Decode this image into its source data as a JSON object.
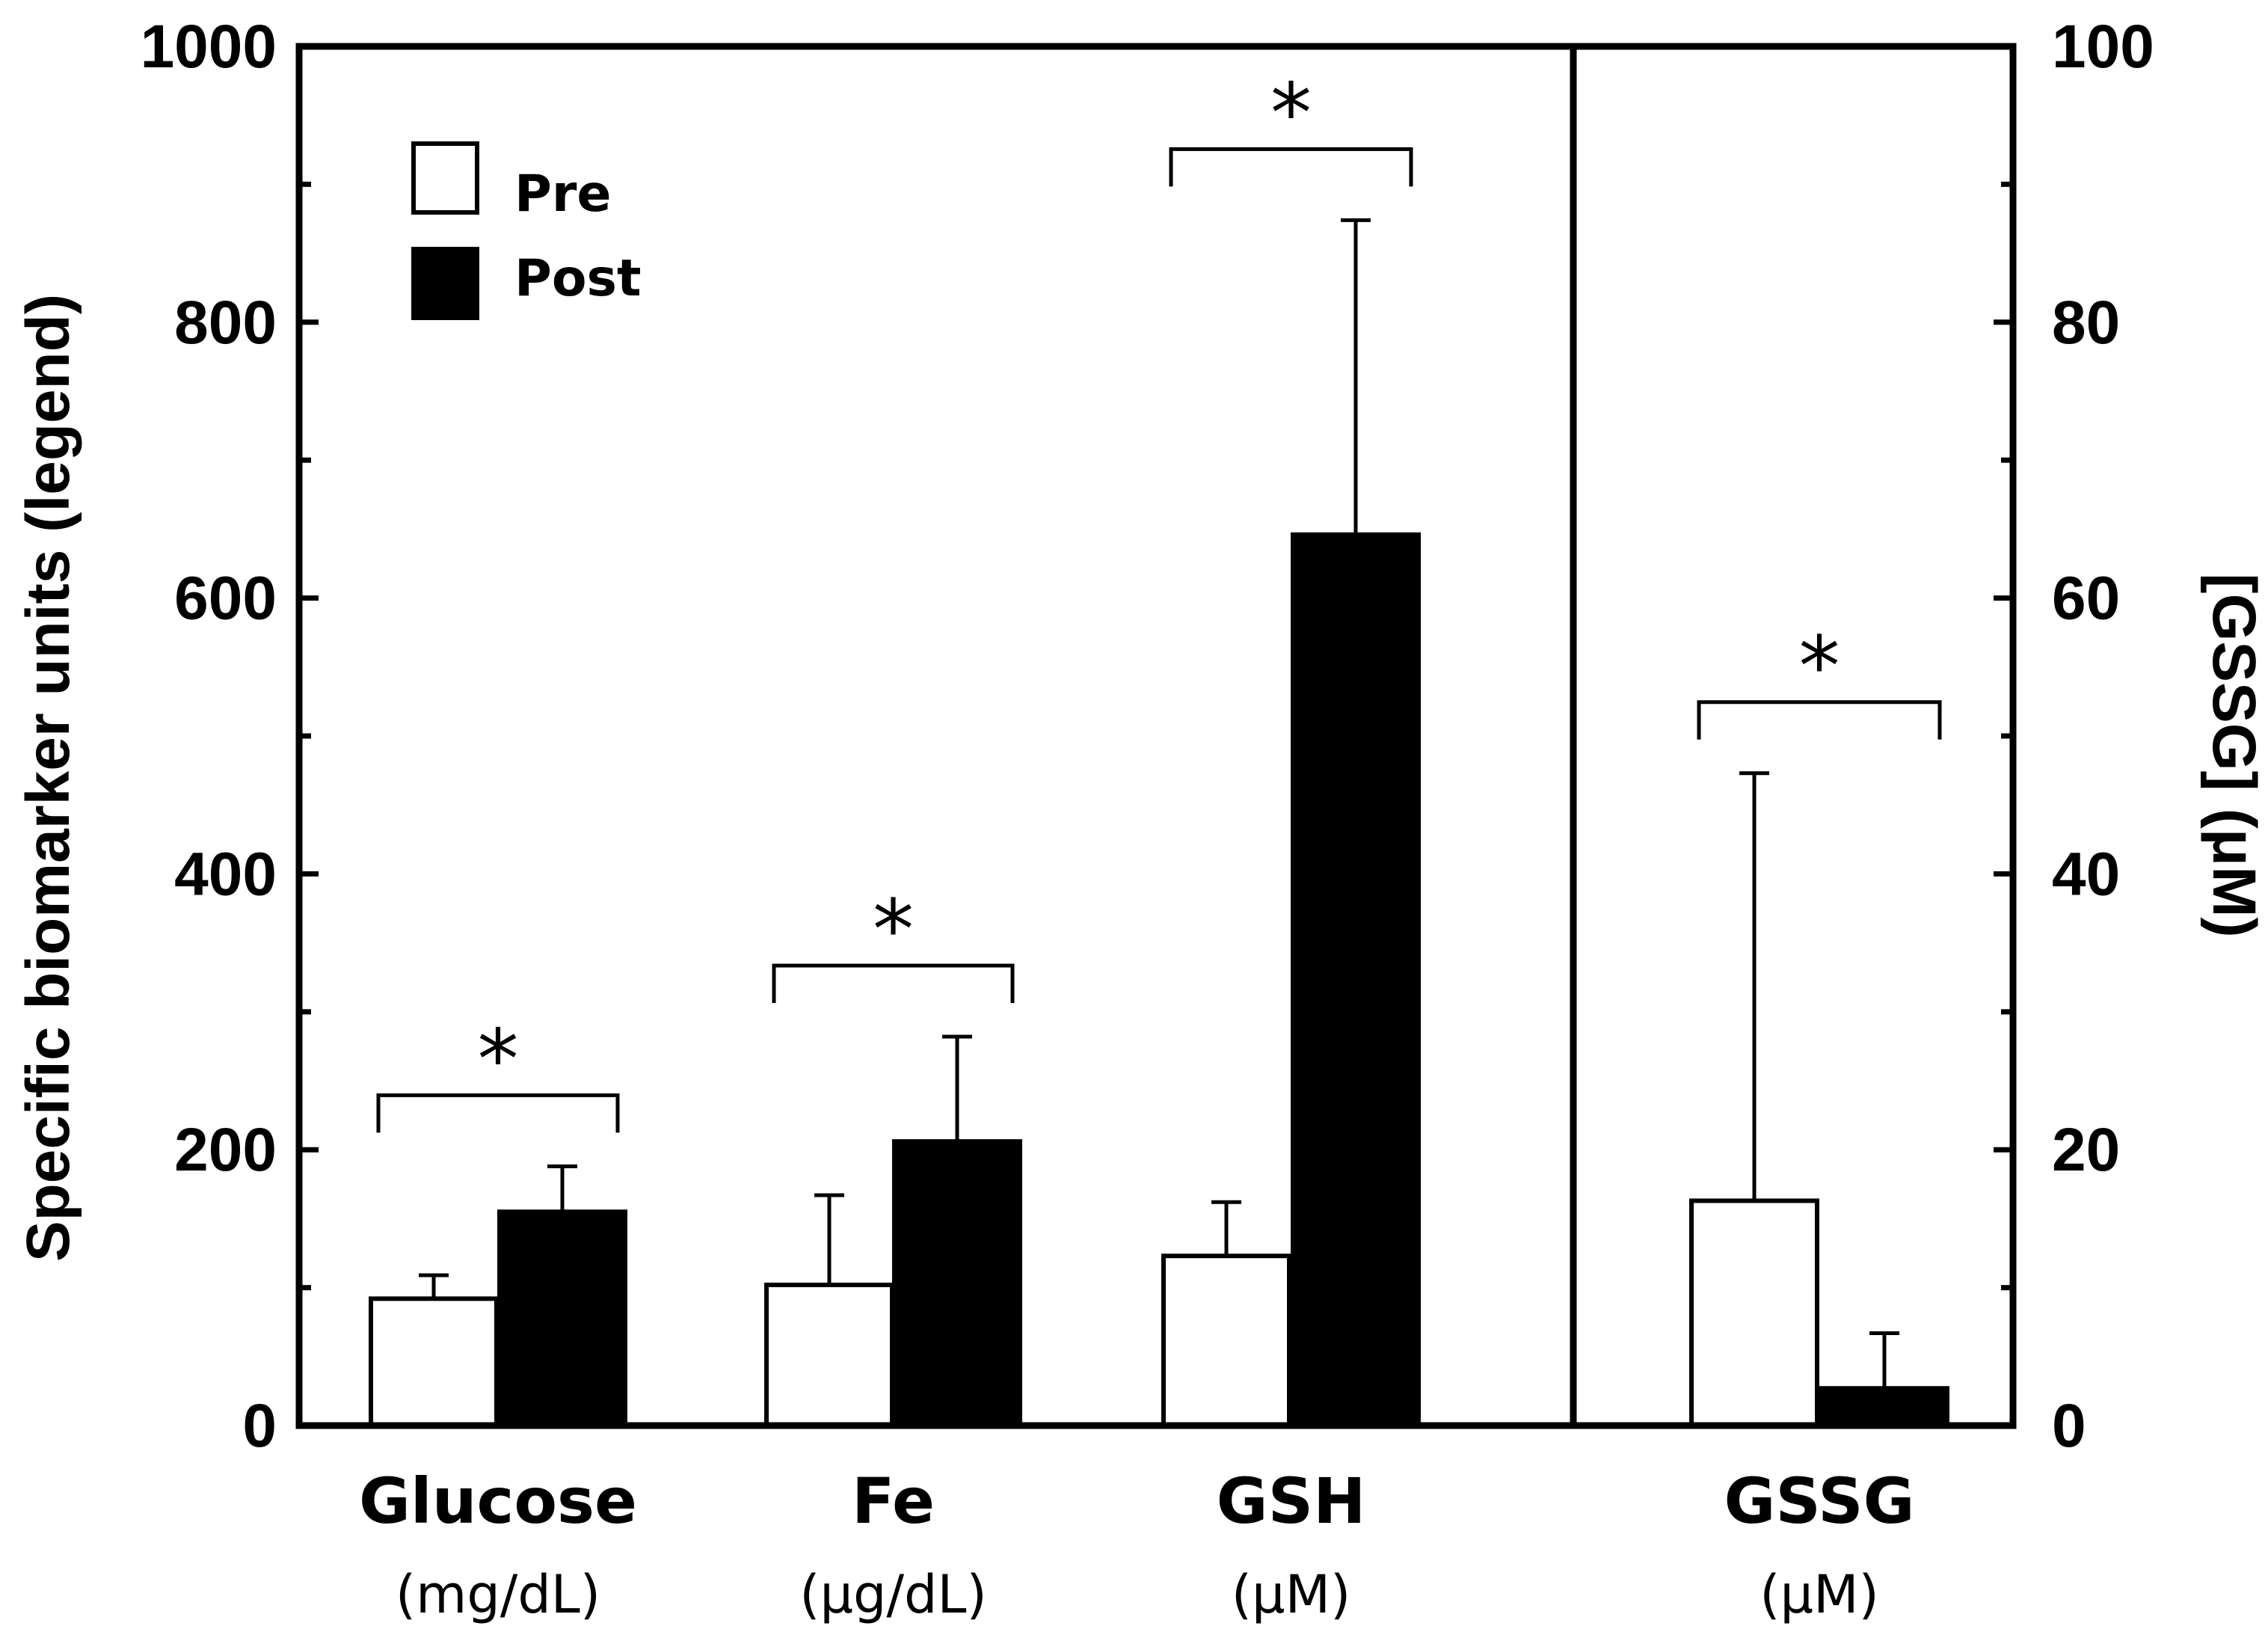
{
  "chart_data": {
    "type": "bar",
    "left_axis": {
      "label": "Specific biomarker units (legend)",
      "ylim": [
        0,
        1000
      ],
      "major_ticks": [
        0,
        200,
        400,
        600,
        800,
        1000
      ],
      "minor_ticks": [
        100,
        300,
        500,
        700,
        900
      ]
    },
    "right_axis": {
      "label": "[GSSG] (μM)",
      "ylim": [
        0,
        100
      ],
      "major_ticks": [
        0,
        20,
        40,
        60,
        80,
        100
      ]
    },
    "legend": {
      "position": "top-left",
      "entries": [
        "Pre",
        "Post"
      ]
    },
    "series_names": [
      "Pre",
      "Post"
    ],
    "groups": [
      {
        "name": "Glucose",
        "unit": "(mg/dL)",
        "axis": "left",
        "pre": 92,
        "pre_err": 17,
        "post": 155,
        "post_err": 33,
        "significant": true
      },
      {
        "name": "Fe",
        "unit": "(μg/dL)",
        "axis": "left",
        "pre": 102,
        "pre_err": 65,
        "post": 206,
        "post_err": 76,
        "significant": true
      },
      {
        "name": "GSH",
        "unit": "(μM)",
        "axis": "left",
        "pre": 123,
        "pre_err": 39,
        "post": 646,
        "post_err": 228,
        "significant": true
      },
      {
        "name": "GSSG",
        "unit": "(μM)",
        "axis": "right",
        "pre": 16.3,
        "pre_err": 31,
        "post": 2.7,
        "post_err": 4,
        "significant": true
      }
    ],
    "significance_marker": "*"
  }
}
